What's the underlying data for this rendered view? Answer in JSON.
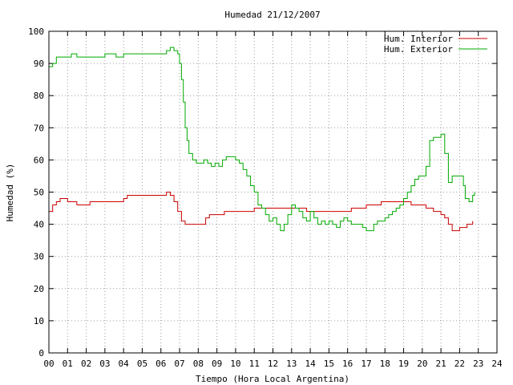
{
  "chart_data": {
    "type": "line",
    "title": "Humedad 21/12/2007",
    "xlabel": "Tiempo (Hora Local Argentina)",
    "ylabel": "Humedad (%)",
    "xlim": [
      0,
      24
    ],
    "ylim": [
      0,
      100
    ],
    "x_ticks": [
      "00",
      "01",
      "02",
      "03",
      "04",
      "05",
      "06",
      "07",
      "08",
      "09",
      "10",
      "11",
      "12",
      "13",
      "14",
      "15",
      "16",
      "17",
      "18",
      "19",
      "20",
      "21",
      "22",
      "23",
      "24"
    ],
    "y_ticks": [
      0,
      10,
      20,
      30,
      40,
      50,
      60,
      70,
      80,
      90,
      100
    ],
    "grid": true,
    "legend_position": "top-right",
    "series": [
      {
        "name": "Hum. Interior",
        "color": "#cc0000",
        "points": [
          [
            0,
            44
          ],
          [
            0.2,
            46
          ],
          [
            0.4,
            47
          ],
          [
            0.6,
            48
          ],
          [
            1.0,
            47
          ],
          [
            1.3,
            47
          ],
          [
            1.5,
            46
          ],
          [
            2.0,
            46
          ],
          [
            2.2,
            47
          ],
          [
            2.5,
            47
          ],
          [
            3.0,
            47
          ],
          [
            3.3,
            47
          ],
          [
            3.5,
            47
          ],
          [
            4.0,
            48
          ],
          [
            4.2,
            49
          ],
          [
            4.5,
            49
          ],
          [
            5.0,
            49
          ],
          [
            5.5,
            49
          ],
          [
            6.0,
            49
          ],
          [
            6.3,
            50
          ],
          [
            6.5,
            49
          ],
          [
            6.7,
            47
          ],
          [
            6.9,
            44
          ],
          [
            7.1,
            41
          ],
          [
            7.3,
            40
          ],
          [
            7.6,
            40
          ],
          [
            8.0,
            40
          ],
          [
            8.2,
            40
          ],
          [
            8.4,
            42
          ],
          [
            8.6,
            43
          ],
          [
            8.8,
            43
          ],
          [
            9.0,
            43
          ],
          [
            9.4,
            44
          ],
          [
            9.8,
            44
          ],
          [
            10.2,
            44
          ],
          [
            10.6,
            44
          ],
          [
            11.0,
            45
          ],
          [
            11.4,
            45
          ],
          [
            11.8,
            45
          ],
          [
            12.2,
            45
          ],
          [
            12.6,
            45
          ],
          [
            13.0,
            45
          ],
          [
            13.4,
            45
          ],
          [
            13.8,
            44
          ],
          [
            14.2,
            44
          ],
          [
            14.6,
            44
          ],
          [
            15.0,
            44
          ],
          [
            15.4,
            44
          ],
          [
            15.8,
            44
          ],
          [
            16.2,
            45
          ],
          [
            16.6,
            45
          ],
          [
            17.0,
            46
          ],
          [
            17.4,
            46
          ],
          [
            17.8,
            47
          ],
          [
            18.2,
            47
          ],
          [
            18.6,
            47
          ],
          [
            19.0,
            47
          ],
          [
            19.4,
            46
          ],
          [
            19.8,
            46
          ],
          [
            20.2,
            45
          ],
          [
            20.6,
            44
          ],
          [
            21.0,
            43
          ],
          [
            21.2,
            42
          ],
          [
            21.4,
            40
          ],
          [
            21.6,
            38
          ],
          [
            21.8,
            38
          ],
          [
            22.0,
            39
          ],
          [
            22.2,
            39
          ],
          [
            22.4,
            40
          ],
          [
            22.7,
            41
          ]
        ]
      },
      {
        "name": "Hum. Exterior",
        "color": "#00aa00",
        "points": [
          [
            0,
            89
          ],
          [
            0.2,
            90
          ],
          [
            0.4,
            92
          ],
          [
            0.6,
            92
          ],
          [
            1.0,
            92
          ],
          [
            1.2,
            93
          ],
          [
            1.5,
            92
          ],
          [
            2.0,
            92
          ],
          [
            2.5,
            92
          ],
          [
            3.0,
            93
          ],
          [
            3.3,
            93
          ],
          [
            3.6,
            92
          ],
          [
            4.0,
            93
          ],
          [
            4.5,
            93
          ],
          [
            5.0,
            93
          ],
          [
            5.5,
            93
          ],
          [
            6.0,
            93
          ],
          [
            6.3,
            94
          ],
          [
            6.5,
            95
          ],
          [
            6.7,
            94
          ],
          [
            6.9,
            93
          ],
          [
            7.0,
            90
          ],
          [
            7.1,
            85
          ],
          [
            7.2,
            78
          ],
          [
            7.3,
            70
          ],
          [
            7.4,
            66
          ],
          [
            7.5,
            62
          ],
          [
            7.7,
            60
          ],
          [
            7.9,
            59
          ],
          [
            8.1,
            59
          ],
          [
            8.3,
            60
          ],
          [
            8.5,
            59
          ],
          [
            8.7,
            58
          ],
          [
            8.9,
            59
          ],
          [
            9.1,
            58
          ],
          [
            9.3,
            60
          ],
          [
            9.5,
            61
          ],
          [
            9.7,
            61
          ],
          [
            10.0,
            60
          ],
          [
            10.2,
            59
          ],
          [
            10.4,
            57
          ],
          [
            10.6,
            55
          ],
          [
            10.8,
            52
          ],
          [
            11.0,
            50
          ],
          [
            11.2,
            46
          ],
          [
            11.4,
            45
          ],
          [
            11.6,
            43
          ],
          [
            11.8,
            41
          ],
          [
            12.0,
            42
          ],
          [
            12.2,
            40
          ],
          [
            12.4,
            38
          ],
          [
            12.6,
            40
          ],
          [
            12.8,
            43
          ],
          [
            13.0,
            46
          ],
          [
            13.2,
            45
          ],
          [
            13.4,
            44
          ],
          [
            13.6,
            42
          ],
          [
            13.8,
            41
          ],
          [
            14.0,
            44
          ],
          [
            14.2,
            42
          ],
          [
            14.4,
            40
          ],
          [
            14.6,
            41
          ],
          [
            14.8,
            40
          ],
          [
            15.0,
            41
          ],
          [
            15.2,
            40
          ],
          [
            15.4,
            39
          ],
          [
            15.6,
            41
          ],
          [
            15.8,
            42
          ],
          [
            16.0,
            41
          ],
          [
            16.2,
            40
          ],
          [
            16.4,
            40
          ],
          [
            16.6,
            40
          ],
          [
            16.8,
            39
          ],
          [
            17.0,
            38
          ],
          [
            17.2,
            38
          ],
          [
            17.4,
            40
          ],
          [
            17.6,
            41
          ],
          [
            17.8,
            41
          ],
          [
            18.0,
            42
          ],
          [
            18.2,
            43
          ],
          [
            18.4,
            44
          ],
          [
            18.6,
            45
          ],
          [
            18.8,
            46
          ],
          [
            19.0,
            48
          ],
          [
            19.2,
            50
          ],
          [
            19.4,
            52
          ],
          [
            19.6,
            54
          ],
          [
            19.8,
            55
          ],
          [
            20.0,
            55
          ],
          [
            20.2,
            58
          ],
          [
            20.4,
            66
          ],
          [
            20.6,
            67
          ],
          [
            20.8,
            67
          ],
          [
            21.0,
            68
          ],
          [
            21.2,
            62
          ],
          [
            21.4,
            53
          ],
          [
            21.6,
            55
          ],
          [
            21.8,
            55
          ],
          [
            22.0,
            55
          ],
          [
            22.2,
            52
          ],
          [
            22.3,
            48
          ],
          [
            22.5,
            47
          ],
          [
            22.7,
            49
          ],
          [
            22.8,
            50
          ]
        ]
      }
    ]
  }
}
